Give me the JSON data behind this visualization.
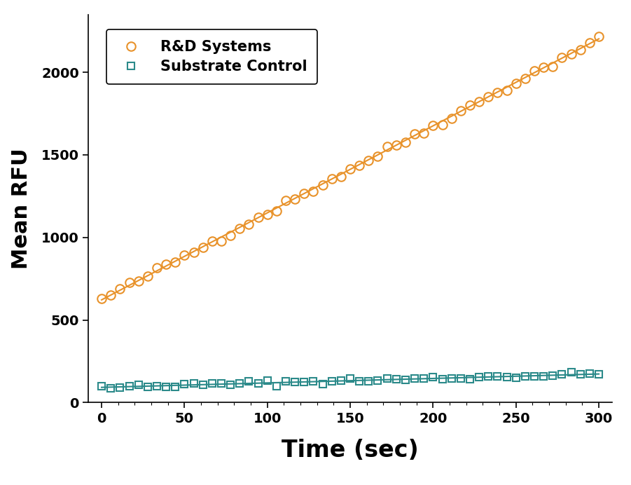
{
  "xlabel": "Time (sec)",
  "ylabel": "Mean RFU",
  "xlim": [
    -8,
    308
  ],
  "ylim": [
    0,
    2350
  ],
  "xticks": [
    0,
    50,
    100,
    150,
    200,
    250,
    300
  ],
  "yticks": [
    0,
    500,
    1000,
    1500,
    2000
  ],
  "rd_systems_color": "#E8922A",
  "substrate_color": "#2B8A8A",
  "legend_labels": [
    "R&D Systems",
    "Substrate Control"
  ],
  "rd_intercept": 622,
  "rd_slope": 5.27,
  "sub_intercept": 92,
  "sub_slope": 0.27,
  "n_points": 55,
  "time_start": 0,
  "time_end": 300
}
